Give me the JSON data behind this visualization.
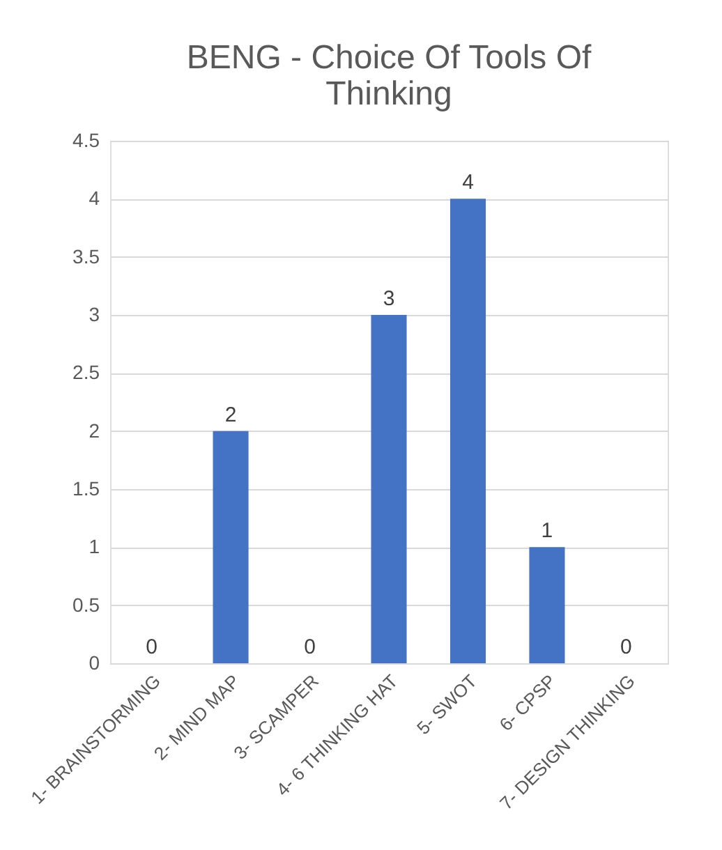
{
  "chart_data": {
    "type": "bar",
    "title": "BENG - Choice Of Tools Of Thinking",
    "categories": [
      "1- BRAINSTORMING",
      "2- MIND MAP",
      "3- SCAMPER",
      "4- 6 THINKING HAT",
      "5- SWOT",
      "6- CPSP",
      "7- DESIGN THINKING"
    ],
    "values": [
      0,
      2,
      0,
      3,
      4,
      1,
      0
    ],
    "color": "#4472c4",
    "ylim": [
      0,
      4.5
    ],
    "yticks": [
      0,
      0.5,
      1,
      1.5,
      2,
      2.5,
      3,
      3.5,
      4,
      4.5
    ],
    "grid": "y",
    "data_labels": true
  }
}
